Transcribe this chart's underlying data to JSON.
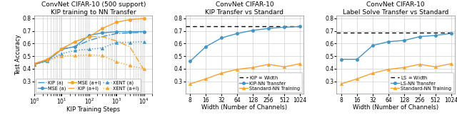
{
  "plot1": {
    "title": "ConvNet CIFAR-10 (500 support)\nKIP training to NN Transfer",
    "xlabel": "KIP Training Steps",
    "ylabel": "Test Accuracy",
    "ylim": [
      0.2,
      0.82
    ],
    "yticks": [
      0.3,
      0.4,
      0.5,
      0.6,
      0.7,
      0.8
    ],
    "steps": [
      1,
      3,
      10,
      30,
      100,
      300,
      1000,
      3000,
      10000
    ],
    "lines": {
      "KIP (a)": {
        "color": "#4393c3",
        "style": "-.",
        "marker": null,
        "values": [
          0.435,
          0.465,
          0.555,
          0.575,
          0.625,
          0.655,
          0.68,
          0.685,
          0.69
        ]
      },
      "KIP (a+l)": {
        "color": "#f4a332",
        "style": "-.",
        "marker": null,
        "values": [
          0.44,
          0.475,
          0.56,
          0.615,
          0.655,
          0.655,
          0.62,
          0.575,
          0.39
        ]
      },
      "MSE (a)": {
        "color": "#4393c3",
        "style": "-",
        "marker": "o",
        "values": [
          0.435,
          0.465,
          0.555,
          0.575,
          0.665,
          0.685,
          0.695,
          0.695,
          0.695
        ]
      },
      "MSE (a+l)": {
        "color": "#f4a332",
        "style": "-",
        "marker": "o",
        "values": [
          0.44,
          0.475,
          0.555,
          0.615,
          0.655,
          0.72,
          0.77,
          0.79,
          0.8
        ]
      },
      "XENT (a)": {
        "color": "#4393c3",
        "style": ":",
        "marker": "^",
        "values": [
          0.435,
          0.46,
          0.52,
          0.545,
          0.555,
          0.565,
          0.61,
          0.61,
          0.615
        ]
      },
      "XENT (a+l)": {
        "color": "#f4a332",
        "style": ":",
        "marker": "^",
        "values": [
          0.44,
          0.47,
          0.5,
          0.505,
          0.51,
          0.505,
          0.455,
          0.425,
          0.4
        ]
      }
    },
    "legend_order": [
      "KIP (a)",
      "MSE (a)",
      "MSE (a+l)",
      "KIP (a+l)",
      "XENT (a)",
      "XENT (a+l)"
    ]
  },
  "plot2": {
    "title": "ConvNet CIFAR-10\nKIP Transfer vs Standard",
    "xlabel": "Width (Number of Channels)",
    "widths": [
      8,
      16,
      32,
      64,
      128,
      256,
      512,
      1024
    ],
    "ylim": [
      0.2,
      0.82
    ],
    "kip_inf": 0.737,
    "kip_nn": [
      0.46,
      0.575,
      0.645,
      0.68,
      0.705,
      0.72,
      0.73,
      0.735
    ],
    "std_nn": [
      0.28,
      0.32,
      0.365,
      0.395,
      0.41,
      0.435,
      0.415,
      0.44
    ]
  },
  "plot3": {
    "title": "ConvNet CIFAR-10\nLabel Solve Transfer vs Standard",
    "xlabel": "Width (Number of Channels)",
    "widths": [
      8,
      16,
      32,
      64,
      128,
      256,
      512,
      1024
    ],
    "ylim": [
      0.2,
      0.82
    ],
    "ls_inf": 0.685,
    "ls_nn": [
      0.475,
      0.475,
      0.585,
      0.615,
      0.625,
      0.655,
      0.665,
      0.68
    ],
    "std_nn": [
      0.28,
      0.32,
      0.365,
      0.395,
      0.41,
      0.435,
      0.415,
      0.44
    ]
  },
  "blue": "#4393c3",
  "orange": "#f4a332",
  "grid_color": "#d0d0d0",
  "bg_color": "#ffffff"
}
